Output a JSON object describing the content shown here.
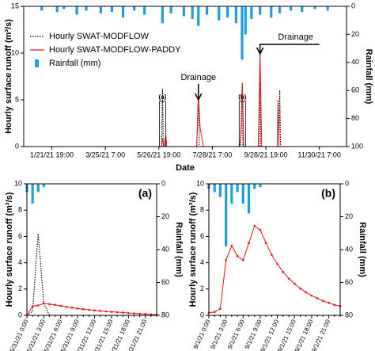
{
  "chart_data": [
    {
      "type": "line",
      "xlabel": "Date",
      "ylabel": "Hourly surface runoff (m³/s)",
      "y2label": "Rainfall (mm)",
      "xlim": [
        "12/20/20 0:00",
        "1/1/22 0:00"
      ],
      "xticks": [
        "1/21/21 19:00",
        "3/25/21 7:00",
        "5/26/21 19:00",
        "7/28/21 7:00",
        "9/28/21 19:00",
        "11/30/21 7:00"
      ],
      "ylim": [
        0,
        15
      ],
      "yticks": [
        0,
        5,
        10,
        15
      ],
      "y2lim": [
        0,
        100
      ],
      "y2ticks": [
        0,
        20,
        40,
        60,
        80,
        100
      ],
      "y2_reversed": true,
      "legend": "upper left",
      "annotations": [
        "Drainage",
        "Drainage",
        "(a)",
        "(b)"
      ],
      "series": [
        {
          "name": "Hourly SWAT-MODFLOW",
          "color": "#000000",
          "style": "dotted",
          "x": [
            "5/30/21 0:00",
            "5/31/21 2:00",
            "6/1/21 0:00",
            "7/10/21 0:00",
            "7/12/21 0:00",
            "7/13/21 0:00",
            "8/30/21 0:00",
            "9/1/21 8:00",
            "9/2/21 0:00",
            "9/21/21 0:00",
            "9/22/21 0:00",
            "9/23/21 0:00",
            "10/14/21 0:00",
            "10/15/21 0:00",
            "10/16/21 0:00"
          ],
          "values": [
            0,
            6.2,
            0,
            0,
            5.5,
            0,
            0,
            6.8,
            0,
            0,
            10,
            0,
            0,
            6,
            0
          ]
        },
        {
          "name": "Hourly SWAT-MODFLOW-PADDY",
          "color": "#e8141b",
          "style": "solid",
          "x": [
            "5/30/21 0:00",
            "5/31/21 3:00",
            "6/2/21 0:00",
            "6/4/21 0:00",
            "6/5/21 0:00",
            "7/10/21 0:00",
            "7/12/21 0:00",
            "7/14/21 0:00",
            "7/16/21 0:00",
            "7/18/21 0:00",
            "8/29/21 0:00",
            "8/31/21 0:00",
            "9/1/21 8:00",
            "9/3/21 0:00",
            "9/20/21 0:00",
            "9/22/21 0:00",
            "9/24/21 0:00",
            "10/12/21 0:00",
            "10/13/21 0:00",
            "10/14/21 0:00"
          ],
          "values": [
            0,
            0.9,
            0,
            1.2,
            0,
            0,
            5.5,
            2,
            1,
            0,
            0,
            1.5,
            6.8,
            0,
            0,
            10,
            0,
            0,
            5,
            0
          ]
        },
        {
          "name": "Rainfall (mm)",
          "type": "bar",
          "axis": "y2",
          "color": "#1e9fe0",
          "x": [
            "1/10/21 0:00",
            "1/28/21 0:00",
            "2/5/21 0:00",
            "2/20/21 0:00",
            "3/3/21 0:00",
            "3/20/21 0:00",
            "4/2/21 0:00",
            "4/15/21 0:00",
            "4/28/21 0:00",
            "5/10/21 0:00",
            "5/31/21 0:00",
            "6/10/21 0:00",
            "6/25/21 0:00",
            "7/5/21 0:00",
            "7/12/21 0:00",
            "7/22/21 0:00",
            "8/5/21 0:00",
            "8/15/21 0:00",
            "8/25/21 0:00",
            "9/1/21 0:00",
            "9/5/21 0:00",
            "9/12/21 0:00",
            "9/22/21 0:00",
            "10/5/21 0:00",
            "10/15/21 0:00",
            "10/28/21 0:00",
            "11/10/21 0:00",
            "11/25/21 0:00",
            "12/10/21 0:00"
          ],
          "values": [
            3,
            4,
            2,
            6,
            3,
            5,
            4,
            8,
            3,
            6,
            12,
            5,
            7,
            9,
            14,
            6,
            10,
            8,
            12,
            38,
            20,
            9,
            6,
            8,
            5,
            3,
            4,
            2,
            3
          ]
        }
      ]
    },
    {
      "type": "line",
      "title": "(a)",
      "ylabel": "Hourly surface runoff (m³/s)",
      "y2label": "Rainfall (mm)",
      "categories": [
        "5/31/21 0:00",
        null,
        null,
        "5/31/21 3:00",
        null,
        null,
        "5/31/21 6:00",
        null,
        null,
        "5/31/21 9:00",
        null,
        null,
        "5/31/21 12:00",
        null,
        null,
        "5/31/21 15:00",
        null,
        null,
        "5/31/21 18:00",
        null,
        null,
        "5/31/21 21:00",
        null,
        null
      ],
      "ylim": [
        0,
        10
      ],
      "yticks": [
        0,
        2,
        4,
        6,
        8,
        10
      ],
      "y2lim": [
        0,
        80
      ],
      "y2ticks": [
        0,
        20,
        40,
        60,
        80
      ],
      "y2_reversed": true,
      "series": [
        {
          "name": "Hourly SWAT-MODFLOW",
          "color": "#000000",
          "style": "dotted",
          "values": [
            0,
            0.3,
            6.2,
            0.9,
            0,
            0,
            0,
            0,
            0,
            0,
            0,
            0,
            0,
            0,
            0,
            0,
            0,
            0,
            0,
            0,
            0,
            0,
            0,
            0
          ]
        },
        {
          "name": "Hourly SWAT-MODFLOW-PADDY",
          "color": "#e8141b",
          "style": "solid",
          "marker": true,
          "values": [
            0,
            0.7,
            0.75,
            0.9,
            0.85,
            0.8,
            0.72,
            0.65,
            0.58,
            0.52,
            0.47,
            0.42,
            0.38,
            0.34,
            0.3,
            0.27,
            0.24,
            0.21,
            0.18,
            0.15,
            0.12,
            0.1,
            0.07,
            0.05
          ]
        },
        {
          "name": "Rainfall (mm)",
          "type": "bar",
          "axis": "y2",
          "color": "#1e9fe0",
          "values": [
            5,
            12,
            5,
            2,
            0,
            0,
            0,
            0,
            0,
            0,
            0,
            0,
            0,
            0,
            0,
            0,
            0,
            0,
            0,
            0,
            0,
            0,
            0,
            0
          ]
        }
      ]
    },
    {
      "type": "line",
      "title": "(b)",
      "ylabel": "Hourly surface runoff (m³/s)",
      "y2label": "Rainfall (mm)",
      "categories": [
        "9/1/21 0:00",
        null,
        null,
        "9/1/21 3:00",
        null,
        null,
        "9/1/21 6:00",
        null,
        null,
        "9/1/21 9:00",
        null,
        null,
        "9/1/21 12:00",
        null,
        null,
        "9/1/21 15:00",
        null,
        null,
        "9/1/21 18:00",
        null,
        null,
        "9/1/21 21:00",
        null,
        null
      ],
      "ylim": [
        0,
        10
      ],
      "yticks": [
        0,
        2,
        4,
        6,
        8,
        10
      ],
      "y2lim": [
        0,
        80
      ],
      "y2ticks": [
        0,
        20,
        40,
        60,
        80
      ],
      "y2_reversed": true,
      "series": [
        {
          "name": "Hourly SWAT-MODFLOW-PADDY",
          "color": "#e8141b",
          "style": "solid",
          "marker": true,
          "values": [
            0.2,
            0.25,
            0.5,
            4.2,
            5.3,
            4.5,
            4.2,
            5.5,
            6.8,
            6.5,
            5.5,
            4.6,
            3.9,
            3.3,
            2.8,
            2.4,
            2.05,
            1.75,
            1.5,
            1.3,
            1.1,
            0.95,
            0.8,
            0.7
          ]
        },
        {
          "name": "Rainfall (mm)",
          "type": "bar",
          "axis": "y2",
          "color": "#1e9fe0",
          "values": [
            3,
            5,
            8,
            38,
            12,
            5,
            12,
            18,
            3,
            2,
            0,
            0,
            0,
            0,
            0,
            0,
            0,
            0,
            0,
            0,
            0,
            0,
            0,
            0
          ]
        }
      ]
    }
  ]
}
